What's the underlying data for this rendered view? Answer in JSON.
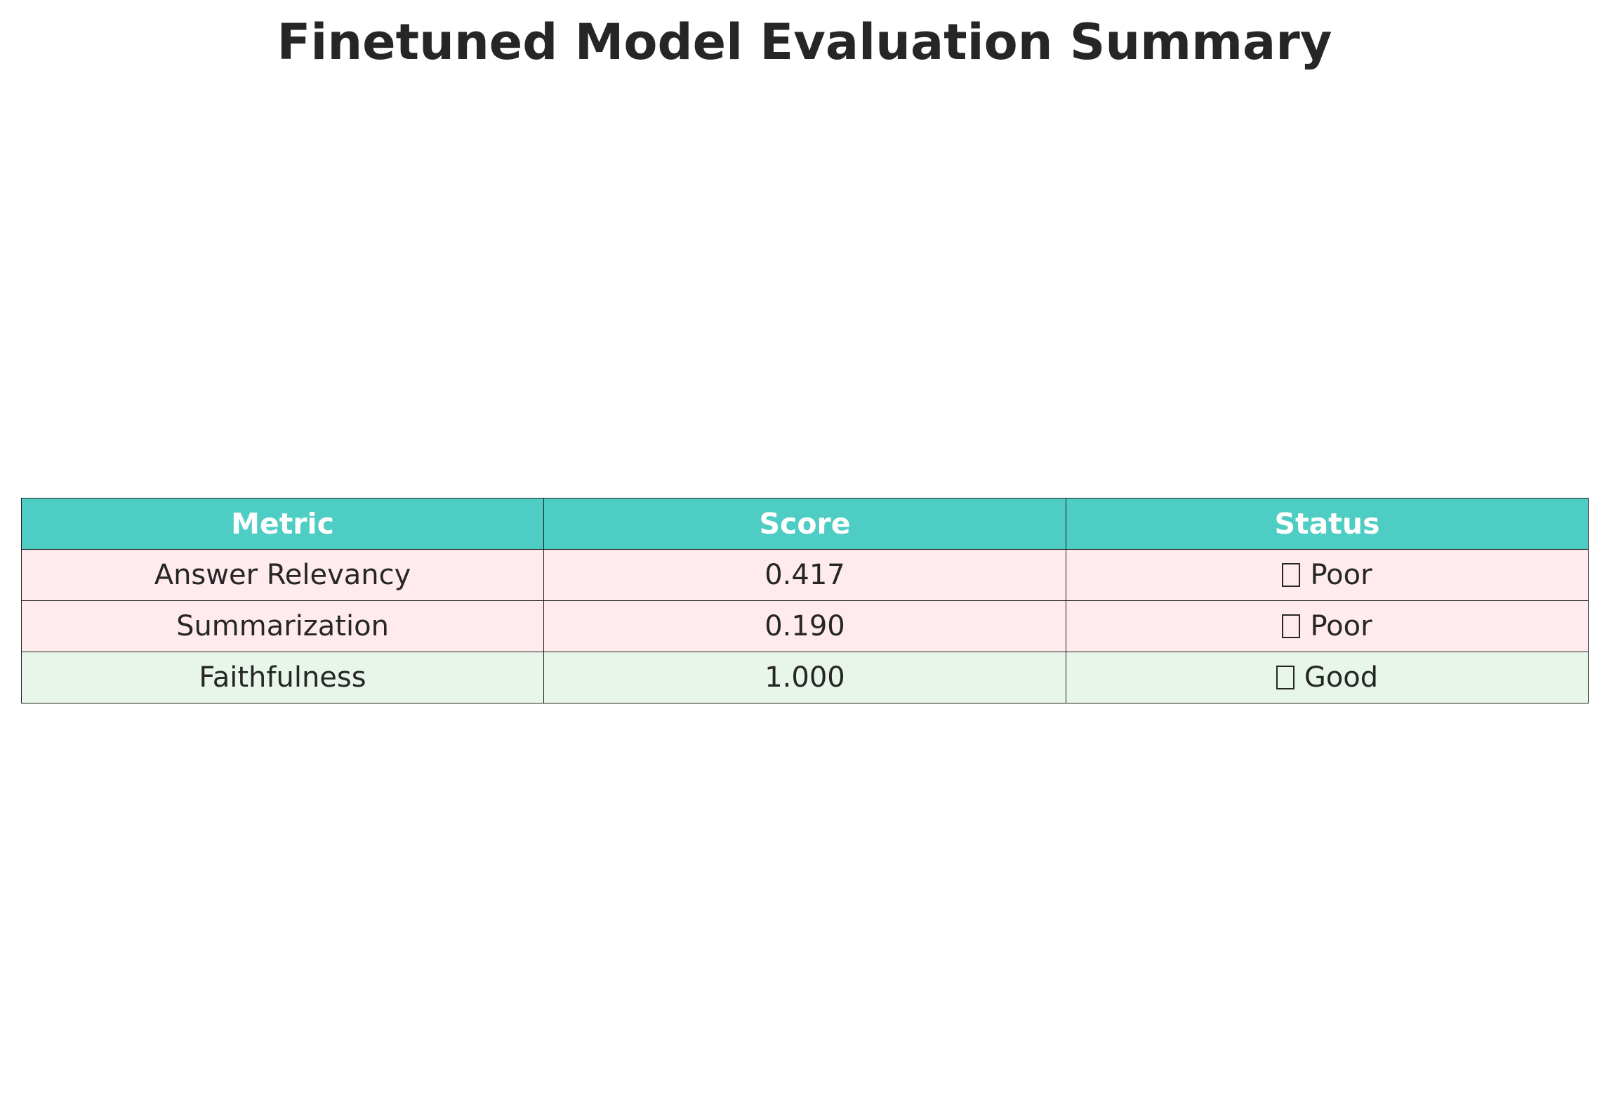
{
  "title": "Finetuned Model Evaluation Summary",
  "colors": {
    "header_bg": "#4ECDC4",
    "header_text": "#FFFFFF",
    "poor_bg": "#FFEBEE",
    "good_bg": "#E8F5E9",
    "border": "#222222"
  },
  "chart_data": {
    "type": "table",
    "title": "Finetuned Model Evaluation Summary",
    "columns": [
      "Metric",
      "Score",
      "Status"
    ],
    "rows": [
      {
        "metric": "Answer Relevancy",
        "score": "0.417",
        "status": "Poor",
        "status_icon": "missing-glyph-icon",
        "status_class": "poor"
      },
      {
        "metric": "Summarization",
        "score": "0.190",
        "status": "Poor",
        "status_icon": "missing-glyph-icon",
        "status_class": "poor"
      },
      {
        "metric": "Faithfulness",
        "score": "1.000",
        "status": "Good",
        "status_icon": "missing-glyph-icon",
        "status_class": "good"
      }
    ]
  }
}
